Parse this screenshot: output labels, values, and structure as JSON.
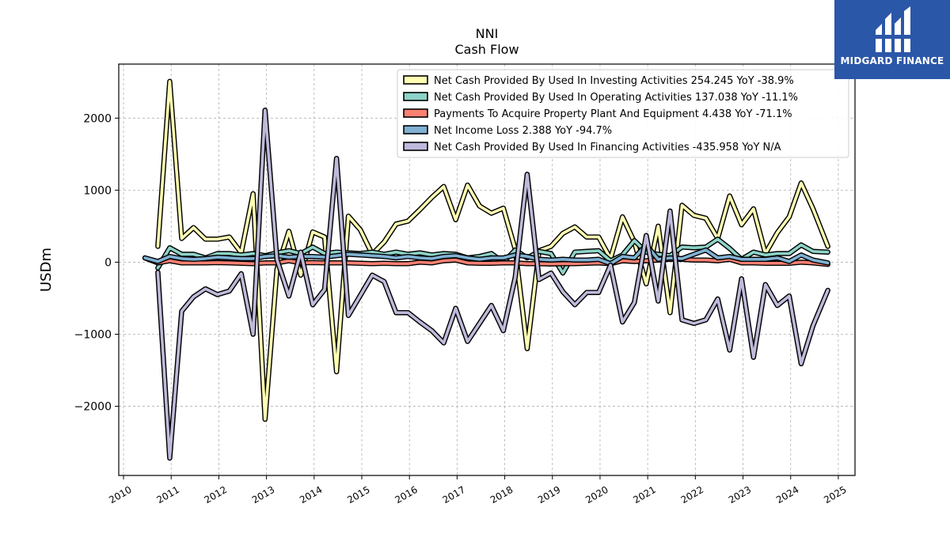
{
  "logo": {
    "text": "MIDGARD FINANCE",
    "color": "#2b57a8"
  },
  "chart_data": {
    "type": "line",
    "title": "NNI",
    "subtitle": "Cash Flow",
    "ylabel": "USDm",
    "xlim": [
      2009.9,
      2025.35
    ],
    "ylim": [
      -2960,
      2750
    ],
    "xticks": [
      2010,
      2011,
      2012,
      2013,
      2014,
      2015,
      2016,
      2017,
      2018,
      2019,
      2020,
      2021,
      2022,
      2023,
      2024,
      2025
    ],
    "yticks": [
      -2000,
      -1000,
      0,
      1000,
      2000
    ],
    "ytick_labels": [
      "−2000",
      "−1000",
      "0",
      "1000",
      "2000"
    ],
    "grid": true,
    "legend_position": "top-right",
    "series": [
      {
        "name": "Net Cash Provided By Used In Investing Activities",
        "legend": "Net Cash Provided By Used In Investing Activities  254.245 YoY -38.9%",
        "color": "#ffffb3",
        "points": [
          [
            2010.72,
            220
          ],
          [
            2010.97,
            2510
          ],
          [
            2011.22,
            330
          ],
          [
            2011.47,
            480
          ],
          [
            2011.72,
            320
          ],
          [
            2011.97,
            320
          ],
          [
            2012.22,
            350
          ],
          [
            2012.47,
            130
          ],
          [
            2012.72,
            950
          ],
          [
            2012.97,
            -2180
          ],
          [
            2013.22,
            -100
          ],
          [
            2013.47,
            430
          ],
          [
            2013.72,
            -180
          ],
          [
            2013.97,
            420
          ],
          [
            2014.22,
            350
          ],
          [
            2014.47,
            -1520
          ],
          [
            2014.72,
            640
          ],
          [
            2014.97,
            450
          ],
          [
            2015.22,
            110
          ],
          [
            2015.47,
            280
          ],
          [
            2015.72,
            530
          ],
          [
            2015.97,
            570
          ],
          [
            2016.22,
            730
          ],
          [
            2016.47,
            900
          ],
          [
            2016.72,
            1050
          ],
          [
            2016.97,
            590
          ],
          [
            2017.22,
            1070
          ],
          [
            2017.47,
            780
          ],
          [
            2017.72,
            680
          ],
          [
            2017.97,
            750
          ],
          [
            2018.22,
            180
          ],
          [
            2018.47,
            -1200
          ],
          [
            2018.72,
            160
          ],
          [
            2018.97,
            220
          ],
          [
            2019.22,
            400
          ],
          [
            2019.47,
            490
          ],
          [
            2019.72,
            350
          ],
          [
            2019.97,
            350
          ],
          [
            2020.22,
            50
          ],
          [
            2020.47,
            630
          ],
          [
            2020.72,
            280
          ],
          [
            2020.97,
            -300
          ],
          [
            2021.22,
            500
          ],
          [
            2021.47,
            -700
          ],
          [
            2021.72,
            790
          ],
          [
            2021.97,
            650
          ],
          [
            2022.22,
            610
          ],
          [
            2022.47,
            330
          ],
          [
            2022.72,
            920
          ],
          [
            2022.97,
            520
          ],
          [
            2023.22,
            740
          ],
          [
            2023.47,
            120
          ],
          [
            2023.72,
            410
          ],
          [
            2023.97,
            630
          ],
          [
            2024.22,
            1100
          ],
          [
            2024.47,
            740
          ],
          [
            2024.78,
            220
          ]
        ]
      },
      {
        "name": "Net Cash Provided By Used In Operating Activities",
        "legend": "Net Cash Provided By Used In Operating Activities  137.038 YoY -11.1%",
        "color": "#8dd3c7",
        "points": [
          [
            2010.72,
            -80
          ],
          [
            2010.97,
            200
          ],
          [
            2011.22,
            110
          ],
          [
            2011.47,
            110
          ],
          [
            2011.72,
            60
          ],
          [
            2011.97,
            120
          ],
          [
            2012.22,
            120
          ],
          [
            2012.47,
            100
          ],
          [
            2012.72,
            120
          ],
          [
            2012.97,
            90
          ],
          [
            2013.22,
            130
          ],
          [
            2013.47,
            160
          ],
          [
            2013.72,
            120
          ],
          [
            2013.97,
            210
          ],
          [
            2014.22,
            120
          ],
          [
            2014.47,
            140
          ],
          [
            2014.72,
            130
          ],
          [
            2014.97,
            120
          ],
          [
            2015.22,
            140
          ],
          [
            2015.47,
            110
          ],
          [
            2015.72,
            140
          ],
          [
            2015.97,
            110
          ],
          [
            2016.22,
            130
          ],
          [
            2016.47,
            100
          ],
          [
            2016.72,
            120
          ],
          [
            2016.97,
            110
          ],
          [
            2017.22,
            60
          ],
          [
            2017.47,
            80
          ],
          [
            2017.72,
            120
          ],
          [
            2017.97,
            0
          ],
          [
            2018.22,
            170
          ],
          [
            2018.47,
            60
          ],
          [
            2018.72,
            150
          ],
          [
            2018.97,
            120
          ],
          [
            2019.22,
            -150
          ],
          [
            2019.47,
            140
          ],
          [
            2019.72,
            150
          ],
          [
            2019.97,
            160
          ],
          [
            2020.22,
            20
          ],
          [
            2020.47,
            100
          ],
          [
            2020.72,
            300
          ],
          [
            2020.97,
            140
          ],
          [
            2021.22,
            110
          ],
          [
            2021.47,
            90
          ],
          [
            2021.72,
            210
          ],
          [
            2021.97,
            200
          ],
          [
            2022.22,
            210
          ],
          [
            2022.47,
            320
          ],
          [
            2022.72,
            190
          ],
          [
            2022.97,
            40
          ],
          [
            2023.22,
            140
          ],
          [
            2023.47,
            100
          ],
          [
            2023.72,
            120
          ],
          [
            2023.97,
            120
          ],
          [
            2024.22,
            240
          ],
          [
            2024.47,
            150
          ],
          [
            2024.78,
            140
          ]
        ]
      },
      {
        "name": "Payments To Acquire Property Plant And Equipment",
        "legend": "Payments To Acquire Property Plant And Equipment  4.438 YoY -71.1%",
        "color": "#fb8072",
        "points": [
          [
            2010.45,
            60
          ],
          [
            2010.72,
            -10
          ],
          [
            2010.97,
            20
          ],
          [
            2011.22,
            -10
          ],
          [
            2011.47,
            -10
          ],
          [
            2011.72,
            -10
          ],
          [
            2011.97,
            -5
          ],
          [
            2012.22,
            -10
          ],
          [
            2012.47,
            -15
          ],
          [
            2012.72,
            -20
          ],
          [
            2012.97,
            -10
          ],
          [
            2013.22,
            -10
          ],
          [
            2013.47,
            20
          ],
          [
            2013.72,
            -10
          ],
          [
            2013.97,
            -5
          ],
          [
            2014.22,
            -10
          ],
          [
            2014.47,
            -10
          ],
          [
            2014.72,
            -10
          ],
          [
            2014.97,
            -15
          ],
          [
            2015.22,
            -20
          ],
          [
            2015.47,
            -15
          ],
          [
            2015.72,
            -20
          ],
          [
            2015.97,
            -20
          ],
          [
            2016.22,
            0
          ],
          [
            2016.47,
            -10
          ],
          [
            2016.72,
            20
          ],
          [
            2016.97,
            30
          ],
          [
            2017.22,
            -10
          ],
          [
            2017.47,
            -15
          ],
          [
            2017.72,
            -15
          ],
          [
            2017.97,
            -10
          ],
          [
            2018.22,
            -10
          ],
          [
            2018.47,
            -20
          ],
          [
            2018.72,
            -20
          ],
          [
            2018.97,
            -25
          ],
          [
            2019.22,
            -20
          ],
          [
            2019.47,
            -20
          ],
          [
            2019.72,
            -15
          ],
          [
            2019.97,
            -10
          ],
          [
            2020.22,
            -20
          ],
          [
            2020.47,
            20
          ],
          [
            2020.72,
            10
          ],
          [
            2020.97,
            20
          ],
          [
            2021.22,
            30
          ],
          [
            2021.47,
            40
          ],
          [
            2021.72,
            40
          ],
          [
            2021.97,
            30
          ],
          [
            2022.22,
            30
          ],
          [
            2022.47,
            20
          ],
          [
            2022.72,
            40
          ],
          [
            2022.97,
            -10
          ],
          [
            2023.22,
            -10
          ],
          [
            2023.47,
            -15
          ],
          [
            2023.72,
            -15
          ],
          [
            2023.97,
            -15
          ],
          [
            2024.22,
            0
          ],
          [
            2024.47,
            -10
          ],
          [
            2024.78,
            -30
          ]
        ]
      },
      {
        "name": "Net Income Loss",
        "legend": "Net Income Loss  2.388 YoY -94.7%",
        "color": "#80b1d3",
        "points": [
          [
            2010.45,
            60
          ],
          [
            2010.72,
            10
          ],
          [
            2010.97,
            80
          ],
          [
            2011.22,
            50
          ],
          [
            2011.47,
            40
          ],
          [
            2011.72,
            50
          ],
          [
            2011.97,
            70
          ],
          [
            2012.22,
            60
          ],
          [
            2012.47,
            50
          ],
          [
            2012.72,
            50
          ],
          [
            2012.97,
            80
          ],
          [
            2013.22,
            90
          ],
          [
            2013.47,
            70
          ],
          [
            2013.72,
            80
          ],
          [
            2013.97,
            80
          ],
          [
            2014.22,
            70
          ],
          [
            2014.47,
            90
          ],
          [
            2014.72,
            110
          ],
          [
            2014.97,
            100
          ],
          [
            2015.22,
            90
          ],
          [
            2015.47,
            80
          ],
          [
            2015.72,
            60
          ],
          [
            2015.97,
            80
          ],
          [
            2016.22,
            60
          ],
          [
            2016.47,
            50
          ],
          [
            2016.72,
            80
          ],
          [
            2016.97,
            90
          ],
          [
            2017.22,
            60
          ],
          [
            2017.47,
            40
          ],
          [
            2017.72,
            60
          ],
          [
            2017.97,
            60
          ],
          [
            2018.22,
            100
          ],
          [
            2018.47,
            80
          ],
          [
            2018.72,
            40
          ],
          [
            2018.97,
            30
          ],
          [
            2019.22,
            40
          ],
          [
            2019.47,
            30
          ],
          [
            2019.72,
            30
          ],
          [
            2019.97,
            40
          ],
          [
            2020.22,
            -20
          ],
          [
            2020.47,
            80
          ],
          [
            2020.72,
            60
          ],
          [
            2020.97,
            240
          ],
          [
            2021.22,
            40
          ],
          [
            2021.47,
            60
          ],
          [
            2021.72,
            50
          ],
          [
            2021.97,
            110
          ],
          [
            2022.22,
            170
          ],
          [
            2022.47,
            60
          ],
          [
            2022.72,
            80
          ],
          [
            2022.97,
            40
          ],
          [
            2023.22,
            40
          ],
          [
            2023.47,
            40
          ],
          [
            2023.72,
            60
          ],
          [
            2023.97,
            10
          ],
          [
            2024.22,
            100
          ],
          [
            2024.47,
            30
          ],
          [
            2024.78,
            -10
          ]
        ]
      },
      {
        "name": "Net Cash Provided By Used In Financing Activities",
        "legend": "Net Cash Provided By Used In Financing Activities  -435.958 YoY N/A",
        "color": "#bebada",
        "points": [
          [
            2010.72,
            -140
          ],
          [
            2010.97,
            -2720
          ],
          [
            2011.22,
            -680
          ],
          [
            2011.47,
            -480
          ],
          [
            2011.72,
            -370
          ],
          [
            2011.97,
            -450
          ],
          [
            2012.22,
            -400
          ],
          [
            2012.47,
            -160
          ],
          [
            2012.72,
            -1000
          ],
          [
            2012.97,
            2110
          ],
          [
            2013.22,
            40
          ],
          [
            2013.47,
            -470
          ],
          [
            2013.72,
            140
          ],
          [
            2013.97,
            -590
          ],
          [
            2014.22,
            -380
          ],
          [
            2014.47,
            1440
          ],
          [
            2014.72,
            -740
          ],
          [
            2014.97,
            -460
          ],
          [
            2015.22,
            -180
          ],
          [
            2015.47,
            -270
          ],
          [
            2015.72,
            -700
          ],
          [
            2015.97,
            -700
          ],
          [
            2016.22,
            -830
          ],
          [
            2016.47,
            -950
          ],
          [
            2016.72,
            -1120
          ],
          [
            2016.97,
            -640
          ],
          [
            2017.22,
            -1100
          ],
          [
            2017.47,
            -850
          ],
          [
            2017.72,
            -600
          ],
          [
            2017.97,
            -950
          ],
          [
            2018.22,
            -210
          ],
          [
            2018.47,
            1220
          ],
          [
            2018.72,
            -240
          ],
          [
            2018.97,
            -150
          ],
          [
            2019.22,
            -410
          ],
          [
            2019.47,
            -590
          ],
          [
            2019.72,
            -420
          ],
          [
            2019.97,
            -420
          ],
          [
            2020.22,
            -40
          ],
          [
            2020.47,
            -830
          ],
          [
            2020.72,
            -560
          ],
          [
            2020.97,
            370
          ],
          [
            2021.22,
            -540
          ],
          [
            2021.47,
            710
          ],
          [
            2021.72,
            -800
          ],
          [
            2021.97,
            -850
          ],
          [
            2022.22,
            -800
          ],
          [
            2022.47,
            -510
          ],
          [
            2022.72,
            -1220
          ],
          [
            2022.97,
            -230
          ],
          [
            2023.22,
            -1320
          ],
          [
            2023.47,
            -310
          ],
          [
            2023.72,
            -600
          ],
          [
            2023.97,
            -470
          ],
          [
            2024.22,
            -1410
          ],
          [
            2024.47,
            -880
          ],
          [
            2024.78,
            -390
          ]
        ]
      }
    ]
  }
}
